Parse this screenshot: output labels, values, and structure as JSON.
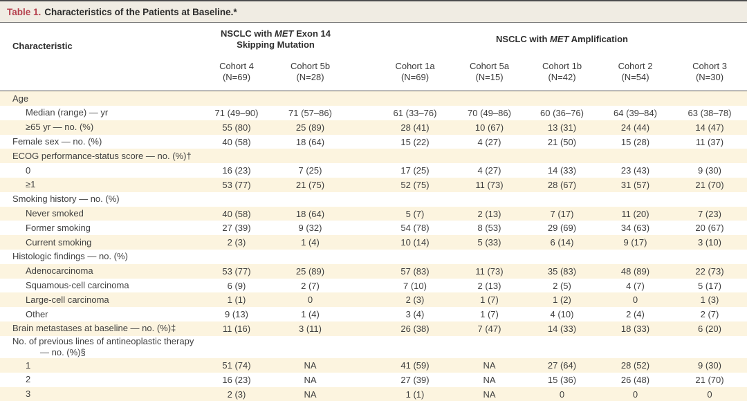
{
  "title": {
    "label": "Table 1.",
    "text": "Characteristics of the Patients at Baseline.*"
  },
  "table": {
    "characteristic_header": "Characteristic",
    "group1": {
      "pre": "NSCLC with ",
      "gene": "MET",
      "post": " Exon 14 Skipping Mutation"
    },
    "group2": {
      "pre": "NSCLC with ",
      "gene": "MET",
      "post": " Amplification"
    },
    "cohorts": [
      {
        "name": "Cohort 4",
        "n": "(N=69)"
      },
      {
        "name": "Cohort 5b",
        "n": "(N=28)"
      },
      {
        "name": "Cohort 1a",
        "n": "(N=69)"
      },
      {
        "name": "Cohort 5a",
        "n": "(N=15)"
      },
      {
        "name": "Cohort 1b",
        "n": "(N=42)"
      },
      {
        "name": "Cohort 2",
        "n": "(N=54)"
      },
      {
        "name": "Cohort 3",
        "n": "(N=30)"
      }
    ],
    "rows": [
      {
        "label": "Age",
        "indent": 0,
        "values": [
          "",
          "",
          "",
          "",
          "",
          "",
          ""
        ]
      },
      {
        "label": "Median (range) — yr",
        "indent": 1,
        "values": [
          "71 (49–90)",
          "71 (57–86)",
          "61 (33–76)",
          "70 (49–86)",
          "60 (36–76)",
          "64 (39–84)",
          "63 (38–78)"
        ]
      },
      {
        "label": "≥65 yr — no. (%)",
        "indent": 1,
        "values": [
          "55 (80)",
          "25 (89)",
          "28 (41)",
          "10 (67)",
          "13 (31)",
          "24 (44)",
          "14 (47)"
        ]
      },
      {
        "label": "Female sex — no. (%)",
        "indent": 0,
        "values": [
          "40 (58)",
          "18 (64)",
          "15 (22)",
          "4 (27)",
          "21 (50)",
          "15 (28)",
          "11 (37)"
        ]
      },
      {
        "label": "ECOG performance-status score — no. (%)†",
        "indent": 0,
        "values": [
          "",
          "",
          "",
          "",
          "",
          "",
          ""
        ]
      },
      {
        "label": "0",
        "indent": 1,
        "values": [
          "16 (23)",
          "7 (25)",
          "17 (25)",
          "4 (27)",
          "14 (33)",
          "23 (43)",
          "9 (30)"
        ]
      },
      {
        "label": "≥1",
        "indent": 1,
        "values": [
          "53 (77)",
          "21 (75)",
          "52 (75)",
          "11 (73)",
          "28 (67)",
          "31 (57)",
          "21 (70)"
        ]
      },
      {
        "label": "Smoking history — no. (%)",
        "indent": 0,
        "values": [
          "",
          "",
          "",
          "",
          "",
          "",
          ""
        ]
      },
      {
        "label": "Never smoked",
        "indent": 1,
        "values": [
          "40 (58)",
          "18 (64)",
          "5 (7)",
          "2 (13)",
          "7 (17)",
          "11 (20)",
          "7 (23)"
        ]
      },
      {
        "label": "Former smoking",
        "indent": 1,
        "values": [
          "27 (39)",
          "9 (32)",
          "54 (78)",
          "8 (53)",
          "29 (69)",
          "34 (63)",
          "20 (67)"
        ]
      },
      {
        "label": "Current smoking",
        "indent": 1,
        "values": [
          "2 (3)",
          "1 (4)",
          "10 (14)",
          "5 (33)",
          "6 (14)",
          "9 (17)",
          "3 (10)"
        ]
      },
      {
        "label": "Histologic findings — no. (%)",
        "indent": 0,
        "values": [
          "",
          "",
          "",
          "",
          "",
          "",
          ""
        ]
      },
      {
        "label": "Adenocarcinoma",
        "indent": 1,
        "values": [
          "53 (77)",
          "25 (89)",
          "57 (83)",
          "11 (73)",
          "35 (83)",
          "48 (89)",
          "22 (73)"
        ]
      },
      {
        "label": "Squamous-cell carcinoma",
        "indent": 1,
        "values": [
          "6 (9)",
          "2 (7)",
          "7 (10)",
          "2 (13)",
          "2 (5)",
          "4 (7)",
          "5 (17)"
        ]
      },
      {
        "label": "Large-cell carcinoma",
        "indent": 1,
        "values": [
          "1 (1)",
          "0",
          "2 (3)",
          "1 (7)",
          "1 (2)",
          "0",
          "1 (3)"
        ]
      },
      {
        "label": "Other",
        "indent": 1,
        "values": [
          "9 (13)",
          "1 (4)",
          "3 (4)",
          "1 (7)",
          "4 (10)",
          "2 (4)",
          "2 (7)"
        ]
      },
      {
        "label": "Brain metastases at baseline — no. (%)‡",
        "indent": 0,
        "values": [
          "11 (16)",
          "3 (11)",
          "26 (38)",
          "7 (47)",
          "14 (33)",
          "18 (33)",
          "6 (20)"
        ]
      },
      {
        "label": "No. of previous lines of antineoplastic therapy",
        "label2": "— no. (%)§",
        "indent": 0,
        "values": [
          "",
          "",
          "",
          "",
          "",
          "",
          ""
        ]
      },
      {
        "label": "1",
        "indent": 1,
        "values": [
          "51 (74)",
          "NA",
          "41 (59)",
          "NA",
          "27 (64)",
          "28 (52)",
          "9 (30)"
        ]
      },
      {
        "label": "2",
        "indent": 1,
        "values": [
          "16 (23)",
          "NA",
          "27 (39)",
          "NA",
          "15 (36)",
          "26 (48)",
          "21 (70)"
        ]
      },
      {
        "label": "3",
        "indent": 1,
        "values": [
          "2 (3)",
          "NA",
          "1 (1)",
          "NA",
          "0",
          "0",
          "0"
        ]
      }
    ]
  }
}
